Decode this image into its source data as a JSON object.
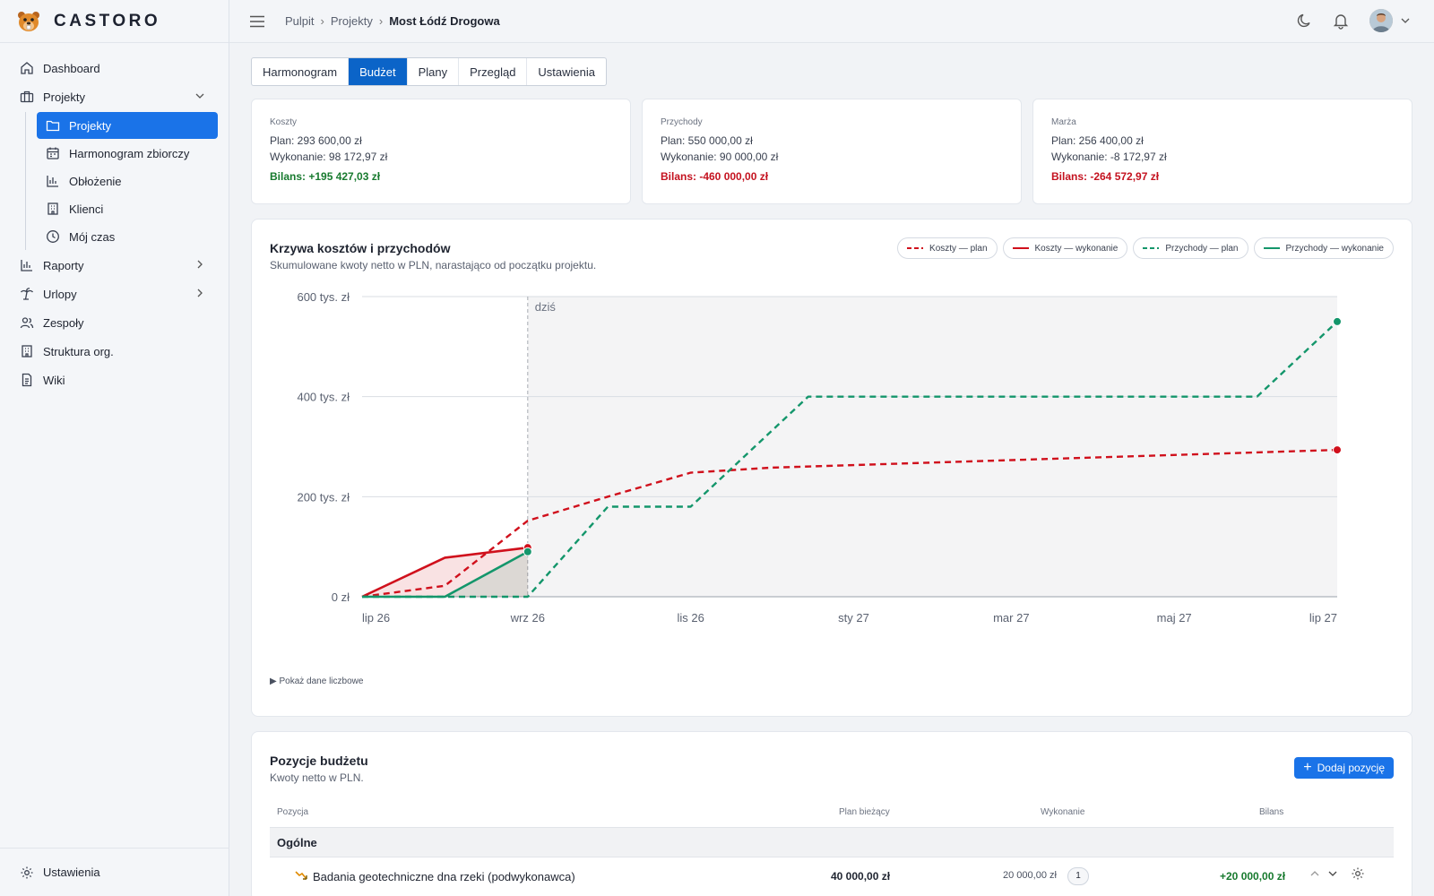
{
  "app": {
    "brand": "CASTORO"
  },
  "sidebar": {
    "items": [
      {
        "label": "Dashboard",
        "icon": "home-icon"
      },
      {
        "label": "Projekty",
        "icon": "briefcase-icon"
      },
      {
        "label": "Raporty",
        "icon": "bar-chart-icon"
      },
      {
        "label": "Urlopy",
        "icon": "palm-icon"
      },
      {
        "label": "Zespoły",
        "icon": "users-icon"
      },
      {
        "label": "Struktura org.",
        "icon": "building-icon"
      },
      {
        "label": "Wiki",
        "icon": "document-icon"
      }
    ],
    "sub_items": [
      {
        "label": "Projekty",
        "icon": "folder-icon"
      },
      {
        "label": "Harmonogram zbiorczy",
        "icon": "calendar-icon"
      },
      {
        "label": "Obłożenie",
        "icon": "bar-chart-icon"
      },
      {
        "label": "Klienci",
        "icon": "building-icon"
      },
      {
        "label": "Mój czas",
        "icon": "clock-icon"
      }
    ],
    "footer": {
      "label": "Ustawienia",
      "icon": "gear-icon"
    }
  },
  "breadcrumb": {
    "items": [
      "Pulpit",
      "Projekty"
    ],
    "current": "Most Łódź Drogowa"
  },
  "tabs": [
    {
      "label": "Harmonogram"
    },
    {
      "label": "Budżet",
      "active": true
    },
    {
      "label": "Plany"
    },
    {
      "label": "Przegląd"
    },
    {
      "label": "Ustawienia"
    }
  ],
  "cards": [
    {
      "label": "Koszty",
      "plan": "Plan: 293 600,00 zł",
      "exec": "Wykonanie: 98 172,97 zł",
      "balance": "Bilans: +195 427,03 zł",
      "status": "positive"
    },
    {
      "label": "Przychody",
      "plan": "Plan: 550 000,00 zł",
      "exec": "Wykonanie: 90 000,00 zł",
      "balance": "Bilans: -460 000,00 zł",
      "status": "negative"
    },
    {
      "label": "Marża",
      "plan": "Plan: 256 400,00 zł",
      "exec": "Wykonanie: -8 172,97 zł",
      "balance": "Bilans: -264 572,97 zł",
      "status": "negative"
    }
  ],
  "chart": {
    "title": "Krzywa kosztów i przychodów",
    "subtitle": "Skumulowane kwoty netto w PLN, narastająco od początku projektu.",
    "legend": [
      "Koszty — plan",
      "Koszty — wykonanie",
      "Przychody — plan",
      "Przychody — wykonanie"
    ],
    "today_label": "dziś",
    "show_data": "Pokaż dane liczbowe"
  },
  "chart_data": {
    "type": "line",
    "x_ticks": [
      "lip 26",
      "wrz 26",
      "lis 26",
      "sty 27",
      "mar 27",
      "maj 27",
      "lip 27"
    ],
    "y_ticks": [
      "0 zł",
      "200 tys. zł",
      "400 tys. zł",
      "600 tys. zł"
    ],
    "ylim": [
      0,
      600000
    ],
    "today": "2026-09-01",
    "series": [
      {
        "name": "Koszty — plan",
        "color": "#d0101c",
        "dashed": true,
        "points": [
          [
            "2026-07-01",
            0
          ],
          [
            "2026-08-01",
            22000
          ],
          [
            "2026-09-01",
            152000
          ],
          [
            "2026-10-01",
            200000
          ],
          [
            "2026-11-01",
            248000
          ],
          [
            "2026-12-01",
            258000
          ],
          [
            "2027-07-01",
            293600
          ]
        ]
      },
      {
        "name": "Koszty — wykonanie",
        "color": "#d0101c",
        "dashed": false,
        "points": [
          [
            "2026-07-01",
            0
          ],
          [
            "2026-08-01",
            78000
          ],
          [
            "2026-09-01",
            98173
          ]
        ]
      },
      {
        "name": "Przychody — plan",
        "color": "#14966b",
        "dashed": true,
        "points": [
          [
            "2026-07-01",
            0
          ],
          [
            "2026-09-01",
            0
          ],
          [
            "2026-10-01",
            180000
          ],
          [
            "2026-11-01",
            180000
          ],
          [
            "2026-12-15",
            400000
          ],
          [
            "2027-06-01",
            400000
          ],
          [
            "2027-07-01",
            550000
          ]
        ]
      },
      {
        "name": "Przychody — wykonanie",
        "color": "#14966b",
        "dashed": false,
        "points": [
          [
            "2026-07-01",
            0
          ],
          [
            "2026-08-01",
            0
          ],
          [
            "2026-09-01",
            90000
          ]
        ]
      }
    ]
  },
  "budget": {
    "title": "Pozycje budżetu",
    "subtitle": "Kwoty netto w PLN.",
    "add_label": "Dodaj pozycję",
    "columns": [
      "Pozycja",
      "Plan bieżący",
      "Wykonanie",
      "Bilans"
    ],
    "group": "Ogólne",
    "rows": [
      {
        "name": "Badania geotechniczne dna rzeki (podwykonawca)",
        "plan": "40 000,00 zł",
        "exec": "20 000,00 zł",
        "count": "1",
        "balance": "+20 000,00 zł"
      }
    ]
  }
}
